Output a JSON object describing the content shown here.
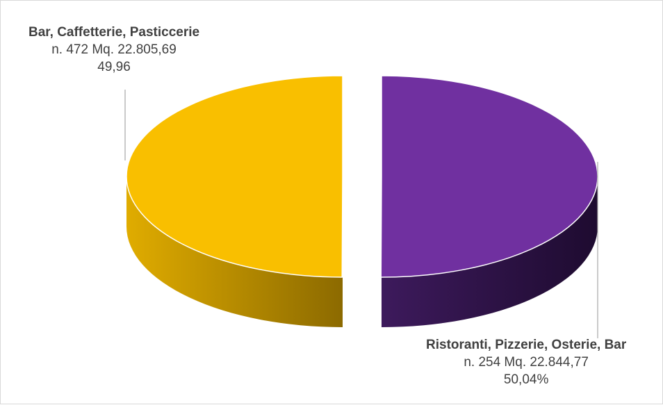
{
  "chart_data": {
    "type": "pie",
    "title": "",
    "slices": [
      {
        "category": "Bar, Caffetterie, Pasticcerie",
        "count_text": "n. 472 Mq. 22.805,69",
        "percent_text": "49,96",
        "value": 49.96,
        "color": "#F9BF00",
        "side_color": "#C99400"
      },
      {
        "category": "Ristoranti, Pizzerie, Osterie, Bar",
        "count_text": "n. 254 Mq. 22.844,77",
        "percent_text": "50,04%",
        "value": 50.04,
        "color": "#7030A0",
        "side_color": "#3A1858"
      }
    ],
    "style": "3d-pie",
    "exploded": true,
    "legend": "none"
  }
}
